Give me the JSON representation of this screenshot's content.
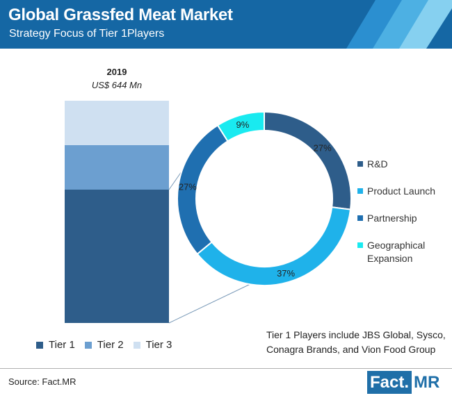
{
  "header": {
    "title": "Global Grassfed Meat Market",
    "subtitle": "Strategy Focus of Tier 1Players"
  },
  "chart_data": [
    {
      "type": "bar",
      "stacked": true,
      "categories": [
        "2019"
      ],
      "category_label": "2019",
      "value_label": "US$ 644 Mn",
      "series": [
        {
          "name": "Tier 1",
          "values": [
            60
          ],
          "color": "#2e5d8a"
        },
        {
          "name": "Tier 2",
          "values": [
            20
          ],
          "color": "#6c9fd0"
        },
        {
          "name": "Tier 3",
          "values": [
            20
          ],
          "color": "#cfe0f1"
        }
      ]
    },
    {
      "type": "pie",
      "donut": true,
      "slices": [
        {
          "name": "R&D",
          "value": 27,
          "label": "27%",
          "color": "#2e5d8a"
        },
        {
          "name": "Product Launch",
          "value": 37,
          "label": "37%",
          "color": "#1fb2ea"
        },
        {
          "name": "Partnership",
          "value": 27,
          "label": "27%",
          "color": "#1f6fb0"
        },
        {
          "name": "Geographical Expansion",
          "value": 9,
          "label": "9%",
          "color": "#19eaf0"
        }
      ]
    }
  ],
  "note": "Tier 1 Players include JBS Global, Sysco, Conagra Brands, and Vion Food Group",
  "footer": {
    "source": "Source: Fact.MR",
    "logo_left": "Fact.",
    "logo_right": "MR"
  },
  "colors": {
    "header_bg": "#1567a4",
    "stripe1": "#2b8fd0",
    "stripe2": "#4db0e3",
    "stripe3": "#86d0f0"
  }
}
